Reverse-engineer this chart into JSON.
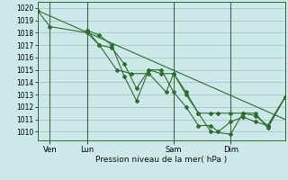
{
  "xlabel": "Pression niveau de la mer( hPa )",
  "ylim": [
    1009.3,
    1020.5
  ],
  "yticks": [
    1010,
    1011,
    1012,
    1013,
    1014,
    1015,
    1016,
    1017,
    1018,
    1019,
    1020
  ],
  "bg_color": "#cce8e8",
  "grid_color": "#aacccc",
  "line_color": "#2d6e2d",
  "xlim": [
    0,
    100
  ],
  "xtick_positions": [
    5,
    20,
    55,
    78
  ],
  "xtick_labels": [
    "Ven",
    "Lun",
    "Sam",
    "Dim"
  ],
  "vline_positions": [
    5,
    20,
    55,
    78
  ],
  "series": [
    {
      "x": [
        0,
        100
      ],
      "y": [
        1019.8,
        1011.0
      ],
      "marker": false
    },
    {
      "x": [
        0,
        5,
        20,
        25,
        32,
        38,
        45,
        52,
        55,
        60,
        65,
        70,
        78,
        83,
        88,
        93,
        100
      ],
      "y": [
        1019.8,
        1018.5,
        1018.0,
        1017.0,
        1015.0,
        1014.7,
        1014.7,
        1013.2,
        1014.7,
        1013.0,
        1011.5,
        1010.0,
        1009.8,
        1011.5,
        1011.5,
        1010.3,
        1012.8
      ],
      "marker": true
    },
    {
      "x": [
        20,
        25,
        30,
        35,
        40,
        45,
        50,
        55,
        60,
        65,
        70,
        73,
        78,
        83,
        88,
        93,
        100
      ],
      "y": [
        1018.2,
        1017.0,
        1016.8,
        1015.5,
        1013.5,
        1015.0,
        1014.7,
        1014.7,
        1013.2,
        1011.5,
        1011.5,
        1011.5,
        1011.5,
        1011.5,
        1011.3,
        1010.5,
        1012.8
      ],
      "marker": true
    },
    {
      "x": [
        20,
        25,
        30,
        35,
        40,
        45,
        50,
        55,
        60,
        65,
        70,
        73,
        78,
        83,
        88,
        93,
        100
      ],
      "y": [
        1018.2,
        1017.8,
        1017.0,
        1014.5,
        1012.5,
        1015.0,
        1015.0,
        1013.2,
        1012.0,
        1010.5,
        1010.5,
        1010.0,
        1010.8,
        1011.2,
        1010.8,
        1010.5,
        1012.8
      ],
      "marker": true
    }
  ]
}
